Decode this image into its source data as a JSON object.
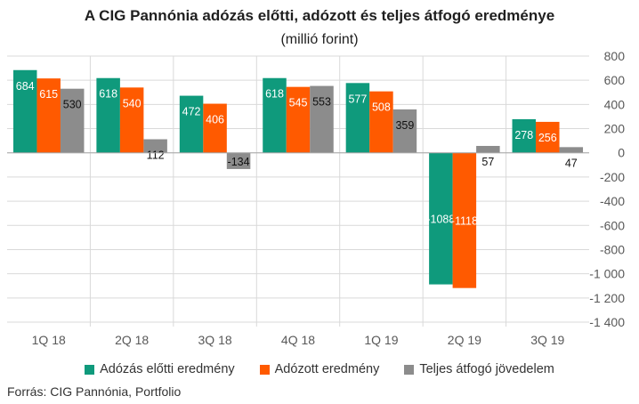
{
  "chart_data": {
    "type": "bar",
    "title": "A CIG Pannónia adózás előtti, adózott és teljes átfogó eredménye",
    "subtitle": "(millió forint)",
    "categories": [
      "1Q 18",
      "2Q 18",
      "3Q 18",
      "4Q 18",
      "1Q 19",
      "2Q 19",
      "3Q 19"
    ],
    "series": [
      {
        "name": "Adózás előtti eredmény",
        "color": "#0f9a7c",
        "values": [
          684,
          618,
          472,
          618,
          577,
          -1088,
          278
        ],
        "labels": [
          "684",
          "618",
          "472",
          "618",
          "577",
          "-1088",
          "278"
        ]
      },
      {
        "name": "Adózott eredmény",
        "color": "#ff5a00",
        "values": [
          615,
          540,
          406,
          545,
          508,
          -1118,
          256
        ],
        "labels": [
          "615",
          "540",
          "406",
          "545",
          "508",
          "-1118",
          "256"
        ]
      },
      {
        "name": "Teljes átfogó jövedelem",
        "color": "#8c8c8c",
        "values": [
          530,
          112,
          -134,
          553,
          359,
          57,
          47
        ],
        "labels": [
          "530",
          "112",
          "-134",
          "553",
          "359",
          "57",
          "47"
        ]
      }
    ],
    "ylim": [
      -1400,
      800
    ],
    "yticks": [
      800,
      600,
      400,
      200,
      0,
      -200,
      -400,
      -600,
      -800,
      -1000,
      -1200,
      -1400
    ],
    "ytick_labels": [
      "800",
      "600",
      "400",
      "200",
      "0",
      "-200",
      "-400",
      "-600",
      "-800",
      "-1 000",
      "-1 200",
      "-1 400"
    ],
    "y_axis_side": "right",
    "grid": true,
    "legend_position": "bottom"
  },
  "source": "Forrás:  CIG Pannónia, Portfolio"
}
